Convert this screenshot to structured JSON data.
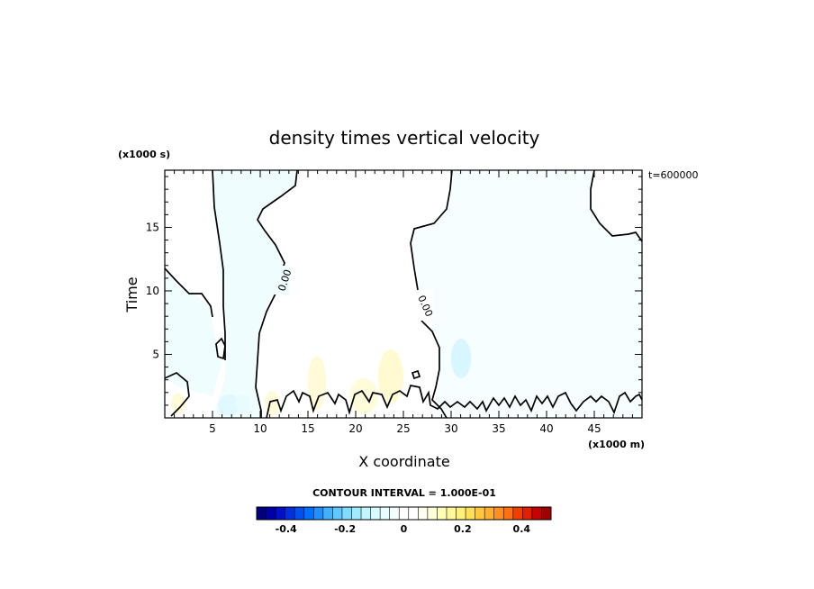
{
  "chart_data": {
    "type": "contour",
    "title": "density times vertical velocity",
    "xlabel": "X coordinate",
    "ylabel": "Time",
    "x_unit_label": "(x1000 m)",
    "y_unit_label": "(x1000 s)",
    "time_label": "t=600000",
    "xlim": [
      0,
      50
    ],
    "ylim": [
      0,
      19.5
    ],
    "x_ticks": [
      5,
      10,
      15,
      20,
      25,
      30,
      35,
      40,
      45
    ],
    "y_ticks": [
      5,
      10,
      15
    ],
    "contour_interval_text": "CONTOUR INTERVAL = 1.000E-01",
    "contour_labels": [
      "0.00",
      "0.00"
    ],
    "colorbar": {
      "min": -0.5,
      "max": 0.5,
      "tick_values": [
        -0.4,
        -0.2,
        0,
        0.2,
        0.4
      ],
      "tick_labels": [
        "-0.4",
        "-0.2",
        "0",
        "0.2",
        "0.4"
      ],
      "colors": [
        "#00007f",
        "#0000a8",
        "#0010c8",
        "#0030e0",
        "#0050f0",
        "#0070ff",
        "#2090ff",
        "#40b0ff",
        "#60c8ff",
        "#80dcff",
        "#a0ecff",
        "#c0f6ff",
        "#d8fbff",
        "#e8fdff",
        "#f4feff",
        "#ffffff",
        "#ffffff",
        "#fffff0",
        "#ffffd8",
        "#ffffb8",
        "#fff898",
        "#fff078",
        "#ffe058",
        "#ffc840",
        "#ffb030",
        "#ff9020",
        "#ff7010",
        "#f04000",
        "#e02000",
        "#c80000",
        "#a00000"
      ]
    }
  }
}
